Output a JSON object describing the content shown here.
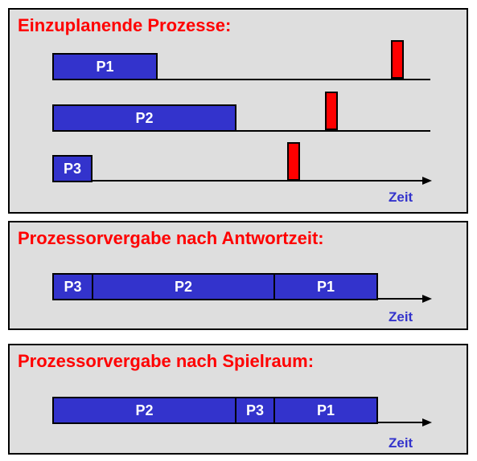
{
  "colors": {
    "title": "#ff0000",
    "bar_fill": "#3333cc",
    "bar_text": "#ffffff",
    "deadline": "#ff0000",
    "axis_label": "#3333cc"
  },
  "panel1": {
    "title": "Einzuplanende Prozesse:",
    "rows": [
      {
        "label": "P1"
      },
      {
        "label": "P2"
      },
      {
        "label": "P3"
      }
    ],
    "axis_label": "Zeit"
  },
  "panel2": {
    "title": "Prozessorvergabe nach Antwortzeit:",
    "segments": [
      {
        "label": "P3"
      },
      {
        "label": "P2"
      },
      {
        "label": "P1"
      }
    ],
    "axis_label": "Zeit"
  },
  "panel3": {
    "title": "Prozessorvergabe nach Spielraum:",
    "segments": [
      {
        "label": "P2"
      },
      {
        "label": "P3"
      },
      {
        "label": "P1"
      }
    ],
    "axis_label": "Zeit"
  }
}
